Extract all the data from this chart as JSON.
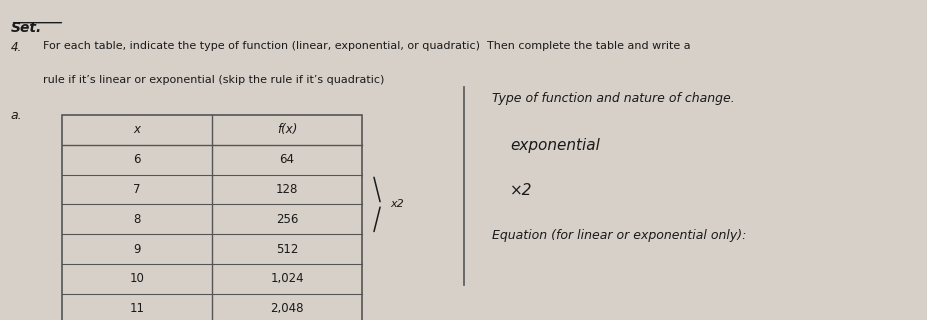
{
  "title_set": "Set.",
  "problem_number": "4.",
  "problem_text_line1": "For each table, indicate the type of function (linear, exponential, or quadratic)  Then complete the table and write a",
  "problem_text_line2": "rule if it’s linear or exponential (skip the rule if it’s quadratic)",
  "sub_label": "a.",
  "table_headers": [
    "x",
    "f(x)"
  ],
  "table_data": [
    [
      "6",
      "64"
    ],
    [
      "7",
      "128"
    ],
    [
      "8",
      "256"
    ],
    [
      "9",
      "512"
    ],
    [
      "10",
      "1,024"
    ],
    [
      "11",
      "2,048"
    ]
  ],
  "bracket_label": "x2",
  "right_section_label1": "Type of function and nature of change.",
  "right_handwritten1": "exponential",
  "right_handwritten2": "×2",
  "right_section_label2": "Equation (for linear or exponential only):",
  "bg_color": "#d6d0c8",
  "text_color": "#1a1a1a",
  "line_color": "#555555"
}
